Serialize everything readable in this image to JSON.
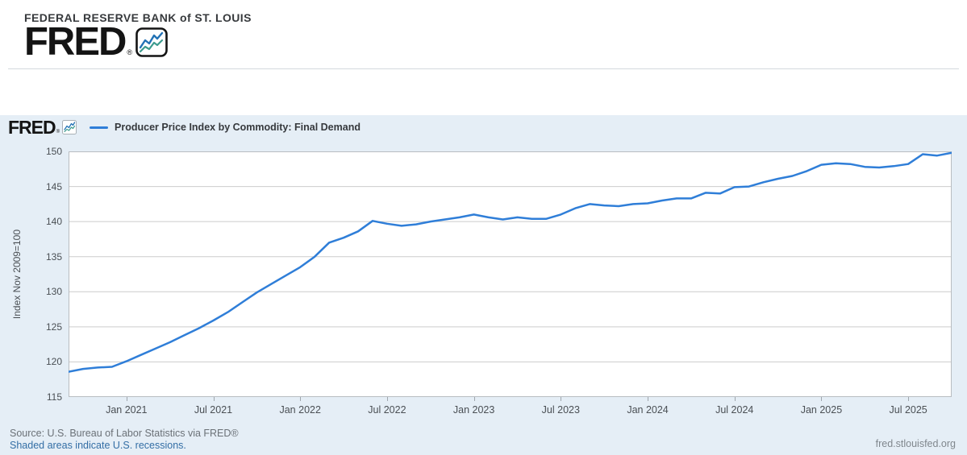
{
  "page_header": {
    "bank_name": "FEDERAL RESERVE BANK of ST. LOUIS",
    "logo_text": "FRED",
    "registered_mark": "®"
  },
  "chart_header": {
    "mini_logo_text": "FRED",
    "mini_registered_mark": "®",
    "legend_label": "Producer Price Index by Commodity: Final Demand"
  },
  "footer": {
    "source_line": "Source: U.S. Bureau of Labor Statistics via FRED®",
    "recessions_note": "Shaded areas indicate U.S. recessions.",
    "site_url": "fred.stlouisfed.org"
  },
  "colors": {
    "line": "#2f7ed8",
    "chart_background": "#e5eef6",
    "plot_background": "#ffffff",
    "grid": "#cccccc",
    "plot_border": "#b9bdc1",
    "link_blue": "#336ea5",
    "logo_icon_blue": "#2272b5",
    "logo_icon_teal": "#3d9b8e"
  },
  "chart_data": {
    "type": "line",
    "title": "Producer Price Index by Commodity: Final Demand",
    "xlabel": "",
    "ylabel": "Index Nov 2009=100",
    "ylim": [
      115,
      150
    ],
    "grid": "horizontal-only",
    "legend_position": "top-left",
    "ytick_labels": [
      150,
      145,
      140,
      135,
      130,
      125,
      120,
      115
    ],
    "xtick_labels": [
      "Jan 2021",
      "Jul 2021",
      "Jan 2022",
      "Jul 2022",
      "Jan 2023",
      "Jul 2023",
      "Jan 2024",
      "Jul 2024",
      "Jan 2025",
      "Jul 2025"
    ],
    "xtick_indices": [
      4,
      10,
      16,
      22,
      28,
      34,
      40,
      46,
      52,
      58
    ],
    "x": [
      "2020-09",
      "2020-10",
      "2020-11",
      "2020-12",
      "2021-01",
      "2021-02",
      "2021-03",
      "2021-04",
      "2021-05",
      "2021-06",
      "2021-07",
      "2021-08",
      "2021-09",
      "2021-10",
      "2021-11",
      "2021-12",
      "2022-01",
      "2022-02",
      "2022-03",
      "2022-04",
      "2022-05",
      "2022-06",
      "2022-07",
      "2022-08",
      "2022-09",
      "2022-10",
      "2022-11",
      "2022-12",
      "2023-01",
      "2023-02",
      "2023-03",
      "2023-04",
      "2023-05",
      "2023-06",
      "2023-07",
      "2023-08",
      "2023-09",
      "2023-10",
      "2023-11",
      "2023-12",
      "2024-01",
      "2024-02",
      "2024-03",
      "2024-04",
      "2024-05",
      "2024-06",
      "2024-07",
      "2024-08",
      "2024-09",
      "2024-10",
      "2024-11",
      "2024-12",
      "2025-01",
      "2025-02",
      "2025-03",
      "2025-04",
      "2025-05",
      "2025-06",
      "2025-07",
      "2025-08",
      "2025-09",
      "2025-10"
    ],
    "values": [
      118.6,
      119.0,
      119.2,
      119.3,
      120.1,
      121.0,
      121.9,
      122.8,
      123.8,
      124.8,
      125.9,
      127.1,
      128.5,
      129.9,
      131.1,
      132.3,
      133.5,
      135.0,
      137.0,
      137.7,
      138.6,
      140.1,
      139.7,
      139.4,
      139.6,
      140.0,
      140.3,
      140.6,
      141.0,
      140.6,
      140.3,
      140.6,
      140.4,
      140.4,
      141.0,
      141.9,
      142.5,
      142.3,
      142.2,
      142.5,
      142.6,
      143.0,
      143.3,
      143.3,
      144.1,
      144.0,
      144.9,
      145.0,
      145.6,
      146.1,
      146.5,
      147.2,
      148.1,
      148.3,
      148.2,
      147.8,
      147.7,
      147.9,
      148.2,
      149.6,
      149.4,
      149.8
    ]
  }
}
